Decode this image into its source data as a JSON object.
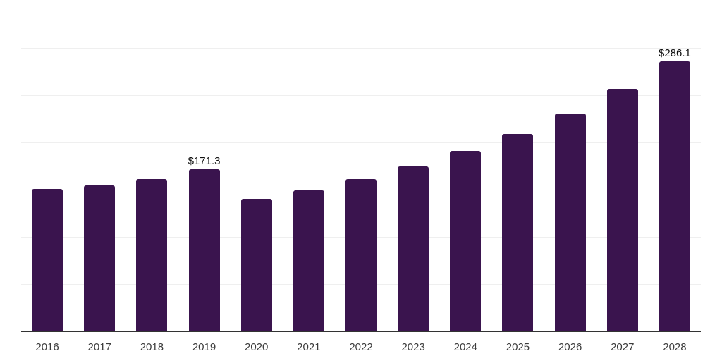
{
  "chart_data": {
    "type": "bar",
    "title": "",
    "xlabel": "",
    "ylabel": "",
    "categories": [
      "2016",
      "2017",
      "2018",
      "2019",
      "2020",
      "2021",
      "2022",
      "2023",
      "2024",
      "2025",
      "2026",
      "2027",
      "2028"
    ],
    "values": [
      150.5,
      154.5,
      161.5,
      171.3,
      140.1,
      149.4,
      161.0,
      174.6,
      191.0,
      209.0,
      230.6,
      256.7,
      286.1
    ],
    "value_prefix": "$",
    "data_labels": [
      {
        "category": "2019",
        "text": "$171.3"
      },
      {
        "category": "2028",
        "text": "$286.1"
      }
    ],
    "ylim": [
      0,
      350
    ],
    "gridline_step": 50,
    "grid": "horizontal",
    "legend": "none",
    "y_axis_ticks_visible": false
  },
  "colors": {
    "background": "#ffffff",
    "bar": "#3A144E",
    "gridline": "#EFEFEF",
    "axis_line": "#333333",
    "tick_label": "#3C3C3C",
    "value_label": "#101010"
  }
}
